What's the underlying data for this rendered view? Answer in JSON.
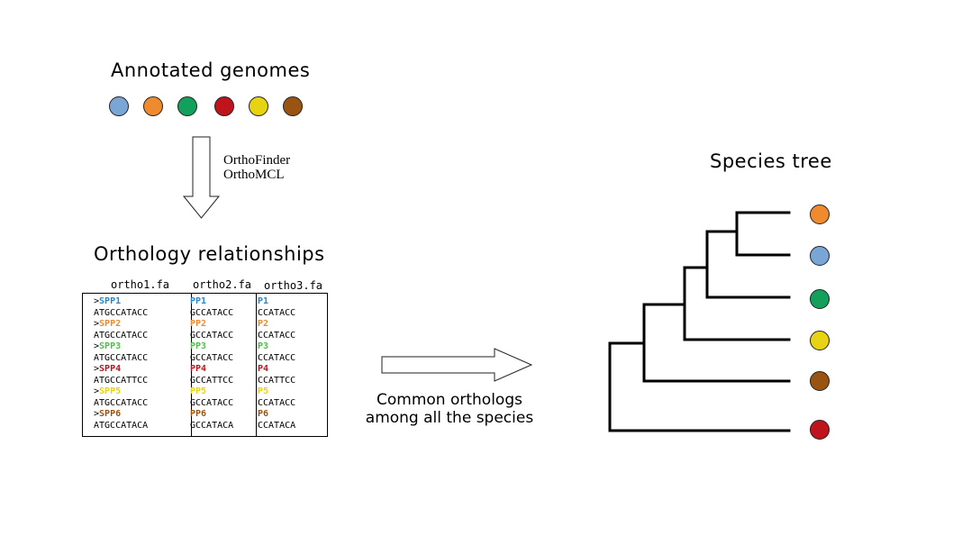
{
  "genomes": {
    "title": "Annotated genomes",
    "colors": [
      "#7aa6d6",
      "#f08a2e",
      "#13a05a",
      "#c0141c",
      "#e7d311",
      "#9a5412"
    ]
  },
  "arrow_label": [
    "OrthoFinder",
    "OrthoMCL"
  ],
  "orthology": {
    "title": "Orthology relationships",
    "files": [
      "ortho1.fa",
      "ortho2.fa",
      "ortho3.fa"
    ],
    "columns": [
      {
        "gt": ">",
        "entries": [
          {
            "id": "SPP1",
            "seq": "ATGCCATACC",
            "color": "#2a86c8"
          },
          {
            "id": "SPP2",
            "seq": "ATGCCATACC",
            "color": "#f08a2e"
          },
          {
            "id": "SPP3",
            "seq": "ATGCCATACC",
            "color": "#4cc04a"
          },
          {
            "id": "SPP4",
            "seq": "ATGCCATTCC",
            "color": "#c0141c"
          },
          {
            "id": "SPP5",
            "seq": "ATGCCATACC",
            "color": "#e7d311"
          },
          {
            "id": "SPP6",
            "seq": "ATGCCATACA",
            "color": "#9a5412"
          }
        ]
      },
      {
        "gt": "",
        "entries": [
          {
            "id": "PP1",
            "seq": "GCCATACC",
            "color": "#2a86c8"
          },
          {
            "id": "PP2",
            "seq": "GCCATACC",
            "color": "#f08a2e"
          },
          {
            "id": "PP3",
            "seq": "GCCATACC",
            "color": "#4cc04a"
          },
          {
            "id": "PP4",
            "seq": "GCCATTCC",
            "color": "#c0141c"
          },
          {
            "id": "PP5",
            "seq": "GCCATACC",
            "color": "#e7d311"
          },
          {
            "id": "PP6",
            "seq": "GCCATACA",
            "color": "#9a5412"
          }
        ]
      },
      {
        "gt": "",
        "entries": [
          {
            "id": "P1",
            "seq": "CCATACC",
            "color": "#2a86c8"
          },
          {
            "id": "P2",
            "seq": "CCATACC",
            "color": "#f08a2e"
          },
          {
            "id": "P3",
            "seq": "CCATACC",
            "color": "#4cc04a"
          },
          {
            "id": "P4",
            "seq": "CCATTCC",
            "color": "#c0141c"
          },
          {
            "id": "P5",
            "seq": "CCATACC",
            "color": "#e7d311"
          },
          {
            "id": "P6",
            "seq": "CCATACA",
            "color": "#9a5412"
          }
        ]
      }
    ]
  },
  "common_label": [
    "Common orthologs",
    "among all the species"
  ],
  "species_tree": {
    "title": "Species tree",
    "leaf_colors": [
      "#f08a2e",
      "#7aa6d6",
      "#13a05a",
      "#e7d311",
      "#9a5412",
      "#c0141c"
    ]
  }
}
